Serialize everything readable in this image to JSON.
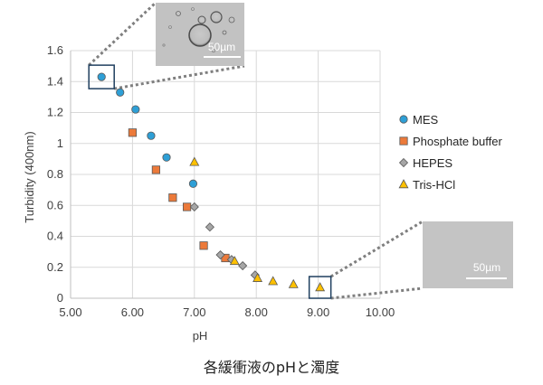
{
  "caption": "各緩衝液のpHと濁度",
  "colors": {
    "MES": "#2e9fd6",
    "Phosphate buffer": "#ec7a3a",
    "HEPES": "#a6a6a6",
    "Tris-HCl": "#ffc000",
    "grid": "#d9d9d9",
    "callout": "#7f7f7f",
    "highlight_box": "#1f3f5f"
  },
  "chart_data": {
    "type": "scatter",
    "xlabel": "pH",
    "ylabel": "Turbidity (400nm)",
    "xlim": [
      5.0,
      10.0
    ],
    "ylim": [
      0,
      1.6
    ],
    "x_ticks": [
      "5.00",
      "6.00",
      "7.00",
      "8.00",
      "9.00",
      "10.00"
    ],
    "y_ticks": [
      "0",
      "0.2",
      "0.4",
      "0.6",
      "0.8",
      "1",
      "1.2",
      "1.4",
      "1.6"
    ],
    "grid": true,
    "legend_position": "right",
    "series": [
      {
        "name": "MES",
        "marker": "circle",
        "points": [
          [
            5.5,
            1.43
          ],
          [
            5.8,
            1.33
          ],
          [
            6.05,
            1.22
          ],
          [
            6.3,
            1.05
          ],
          [
            6.55,
            0.91
          ],
          [
            6.98,
            0.74
          ]
        ]
      },
      {
        "name": "Phosphate buffer",
        "marker": "square",
        "points": [
          [
            6.0,
            1.07
          ],
          [
            6.38,
            0.83
          ],
          [
            6.65,
            0.65
          ],
          [
            6.88,
            0.59
          ],
          [
            7.15,
            0.34
          ],
          [
            7.5,
            0.26
          ]
        ]
      },
      {
        "name": "HEPES",
        "marker": "diamond",
        "points": [
          [
            7.0,
            0.59
          ],
          [
            7.25,
            0.46
          ],
          [
            7.42,
            0.28
          ],
          [
            7.6,
            0.25
          ],
          [
            7.78,
            0.21
          ],
          [
            7.98,
            0.15
          ]
        ]
      },
      {
        "name": "Tris-HCl",
        "marker": "triangle",
        "points": [
          [
            7.0,
            0.88
          ],
          [
            7.65,
            0.24
          ],
          [
            8.02,
            0.13
          ],
          [
            8.27,
            0.11
          ],
          [
            8.6,
            0.09
          ],
          [
            9.03,
            0.07
          ]
        ]
      }
    ],
    "callouts": [
      {
        "target": [
          5.5,
          1.43
        ],
        "image": "microscope-droplets",
        "scale_bar": "50µm"
      },
      {
        "target": [
          9.03,
          0.07
        ],
        "image": "microscope-clear",
        "scale_bar": "50µm"
      }
    ]
  }
}
